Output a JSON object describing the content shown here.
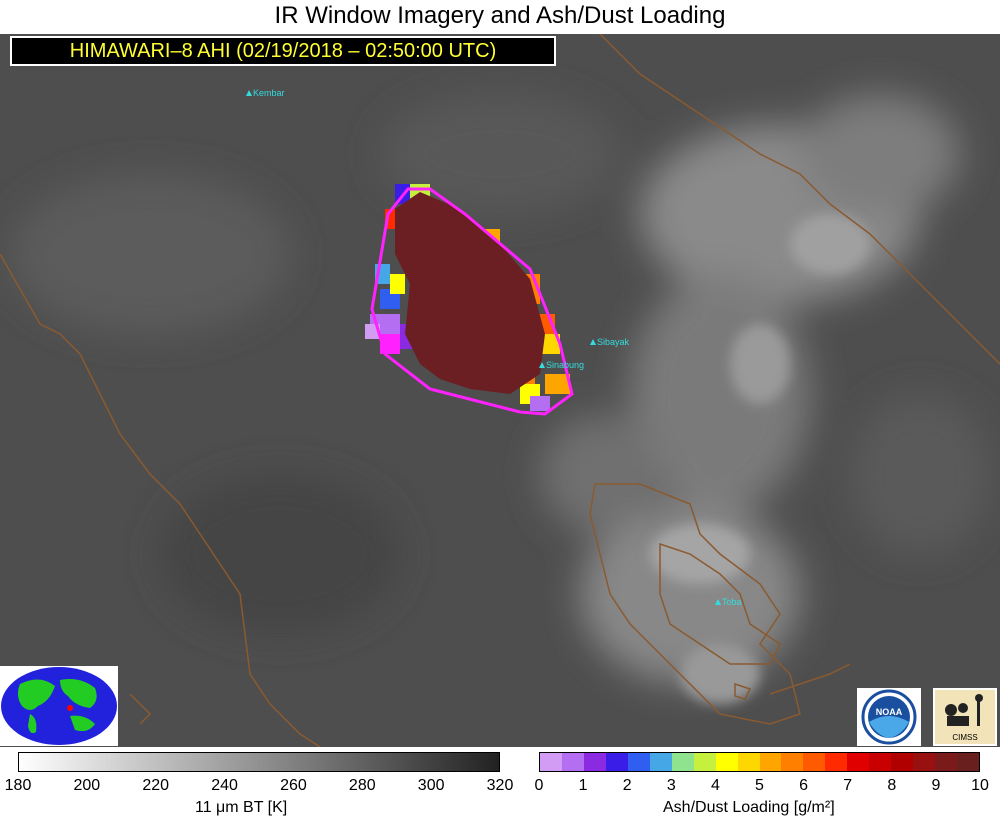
{
  "title": "IR Window Imagery and Ash/Dust Loading",
  "banner": "HIMAWARI–8 AHI (02/19/2018 – 02:50:00 UTC)",
  "volcanoes": [
    {
      "name": "Kembar"
    },
    {
      "name": "Sibayak"
    },
    {
      "name": "Sinabung"
    },
    {
      "name": "Toba"
    }
  ],
  "bt_colorbar": {
    "label": "11 μm BT [K]",
    "ticks": [
      "180",
      "200",
      "220",
      "240",
      "260",
      "280",
      "300",
      "320"
    ],
    "colors": [
      "#ffffff",
      "#222222"
    ]
  },
  "ash_colorbar": {
    "label": "Ash/Dust Loading [g/m²]",
    "ticks": [
      "0",
      "1",
      "2",
      "3",
      "4",
      "5",
      "6",
      "7",
      "8",
      "9",
      "10"
    ],
    "colors": [
      "#d29cf5",
      "#b36ef2",
      "#8a2be2",
      "#3a1de6",
      "#2f5ef0",
      "#45a7e6",
      "#8fe38f",
      "#c6f03e",
      "#ffff00",
      "#ffd700",
      "#ffa500",
      "#ff7f00",
      "#ff5a00",
      "#ff2a00",
      "#e00000",
      "#c80000",
      "#b00000",
      "#991010",
      "#7a1a1a",
      "#6a1f1f"
    ]
  },
  "logos": {
    "noaa": "NOAA",
    "cimss": "CIMSS"
  },
  "colors": {
    "ash_outline": "#ff22ff",
    "ash_core": "#6b1f22",
    "coastline": "#8a5a30",
    "volcano_marker": "#33dddd"
  }
}
